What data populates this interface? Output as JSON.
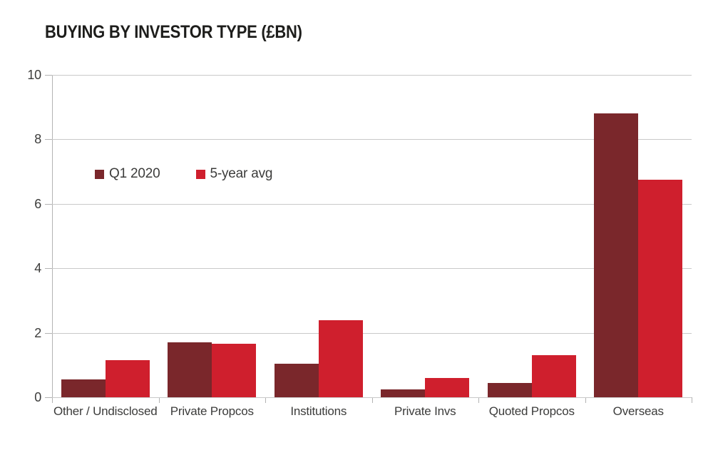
{
  "page": {
    "background": "#ffffff",
    "text_color": "#3c3c3b",
    "title_color": "#1d1d1b",
    "gridline_color": "#c9c9c9",
    "axis_color": "#b3b3b3"
  },
  "chart_data": {
    "type": "bar",
    "title": "BUYING BY INVESTOR TYPE (£BN)",
    "categories": [
      "Other / Undisclosed",
      "Private Propcos",
      "Institutions",
      "Private Invs",
      "Quoted Propcos",
      "Overseas"
    ],
    "series": [
      {
        "name": "Q1 2020",
        "color": "#7a272b",
        "values": [
          0.55,
          1.7,
          1.05,
          0.25,
          0.45,
          8.8
        ]
      },
      {
        "name": "5-year avg",
        "color": "#cf1f2d",
        "values": [
          1.15,
          1.65,
          2.4,
          0.6,
          1.3,
          6.75
        ]
      }
    ],
    "xlabel": "",
    "ylabel": "",
    "ylim": [
      0,
      10
    ],
    "y_ticks": [
      0,
      2,
      4,
      6,
      8,
      10
    ],
    "grid": "horizontal",
    "legend_position": "inside-top-left"
  }
}
